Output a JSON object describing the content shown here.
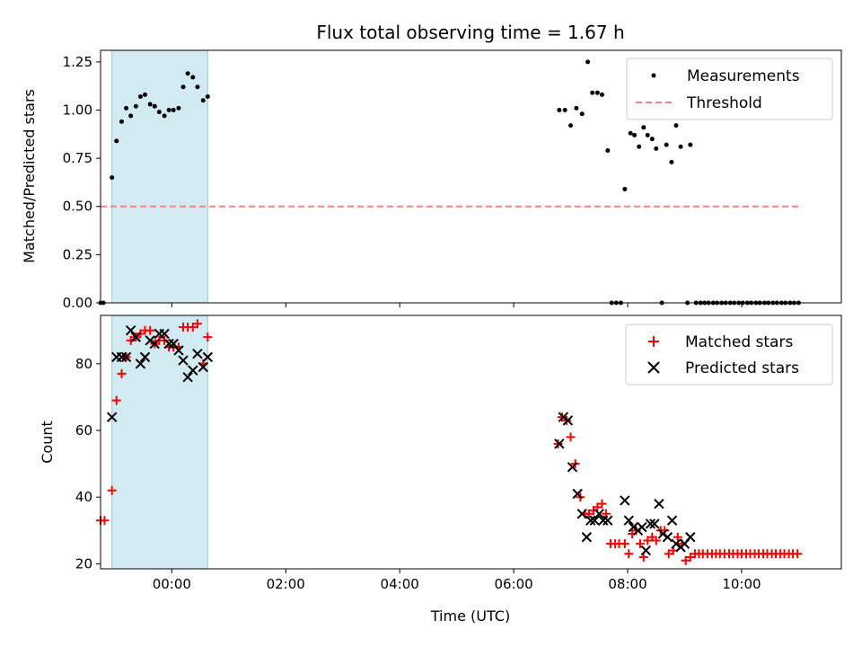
{
  "chart_data": [
    {
      "type": "scatter",
      "title": "Flux total observing time = 1.67 h",
      "ylabel": "Matched/Predicted stars",
      "xlabel": "",
      "xlim": [
        -1.25,
        11.75
      ],
      "ylim": [
        0.0,
        1.31
      ],
      "x_unit": "hours UTC",
      "xticks": [
        0,
        2,
        4,
        6,
        8,
        10
      ],
      "xtick_labels": [
        "",
        "",
        "",
        "",
        "",
        ""
      ],
      "yticks": [
        0.0,
        0.25,
        0.5,
        0.75,
        1.0,
        1.25
      ],
      "ytick_labels": [
        "0.00",
        "0.25",
        "0.50",
        "0.75",
        "1.00",
        "1.25"
      ],
      "shaded_span": {
        "x0": -1.05,
        "x1": 0.63,
        "color": "#add8e6"
      },
      "legend_position": "upper right",
      "series": [
        {
          "name": "Measurements",
          "marker": "dot",
          "color": "#000000",
          "points": [
            [
              -1.25,
              0.0
            ],
            [
              -1.2,
              0.0
            ],
            [
              -1.05,
              0.65
            ],
            [
              -0.97,
              0.84
            ],
            [
              -0.88,
              0.94
            ],
            [
              -0.8,
              1.01
            ],
            [
              -0.72,
              0.97
            ],
            [
              -0.63,
              1.02
            ],
            [
              -0.55,
              1.07
            ],
            [
              -0.47,
              1.08
            ],
            [
              -0.38,
              1.03
            ],
            [
              -0.3,
              1.02
            ],
            [
              -0.22,
              0.99
            ],
            [
              -0.13,
              0.97
            ],
            [
              -0.05,
              1.0
            ],
            [
              0.03,
              1.0
            ],
            [
              0.12,
              1.01
            ],
            [
              0.2,
              1.12
            ],
            [
              0.28,
              1.19
            ],
            [
              0.37,
              1.17
            ],
            [
              0.45,
              1.12
            ],
            [
              0.55,
              1.05
            ],
            [
              0.63,
              1.07
            ],
            [
              6.8,
              1.0
            ],
            [
              6.9,
              1.0
            ],
            [
              7.0,
              0.92
            ],
            [
              7.1,
              1.01
            ],
            [
              7.2,
              0.98
            ],
            [
              7.3,
              1.25
            ],
            [
              7.38,
              1.09
            ],
            [
              7.47,
              1.09
            ],
            [
              7.55,
              1.08
            ],
            [
              7.65,
              0.79
            ],
            [
              7.72,
              0.0
            ],
            [
              7.8,
              0.0
            ],
            [
              7.88,
              0.0
            ],
            [
              7.95,
              0.59
            ],
            [
              8.05,
              0.88
            ],
            [
              8.12,
              0.87
            ],
            [
              8.2,
              0.81
            ],
            [
              8.28,
              0.91
            ],
            [
              8.35,
              0.87
            ],
            [
              8.43,
              0.85
            ],
            [
              8.5,
              0.8
            ],
            [
              8.6,
              0.0
            ],
            [
              8.68,
              0.82
            ],
            [
              8.77,
              0.73
            ],
            [
              8.85,
              0.92
            ],
            [
              8.93,
              0.81
            ],
            [
              9.05,
              0.0
            ],
            [
              9.1,
              0.82
            ],
            [
              9.2,
              0.0
            ],
            [
              9.28,
              0.0
            ],
            [
              9.35,
              0.0
            ],
            [
              9.42,
              0.0
            ],
            [
              9.5,
              0.0
            ],
            [
              9.57,
              0.0
            ],
            [
              9.65,
              0.0
            ],
            [
              9.72,
              0.0
            ],
            [
              9.8,
              0.0
            ],
            [
              9.87,
              0.0
            ],
            [
              9.95,
              0.0
            ],
            [
              10.02,
              0.0
            ],
            [
              10.1,
              0.0
            ],
            [
              10.17,
              0.0
            ],
            [
              10.25,
              0.0
            ],
            [
              10.32,
              0.0
            ],
            [
              10.4,
              0.0
            ],
            [
              10.47,
              0.0
            ],
            [
              10.55,
              0.0
            ],
            [
              10.62,
              0.0
            ],
            [
              10.7,
              0.0
            ],
            [
              10.77,
              0.0
            ],
            [
              10.85,
              0.0
            ],
            [
              10.92,
              0.0
            ],
            [
              11.0,
              0.0
            ]
          ]
        },
        {
          "name": "Threshold",
          "marker": "dashed-line",
          "color": "#ff8080",
          "points": [
            [
              -1.25,
              0.5
            ],
            [
              11.0,
              0.5
            ]
          ]
        }
      ]
    },
    {
      "type": "scatter",
      "title": "",
      "xlabel": "Time (UTC)",
      "ylabel": "Count",
      "xlim": [
        -1.25,
        11.75
      ],
      "ylim": [
        18.5,
        94.5
      ],
      "x_unit": "hours UTC",
      "xticks": [
        0,
        2,
        4,
        6,
        8,
        10
      ],
      "xtick_labels": [
        "00:00",
        "02:00",
        "04:00",
        "06:00",
        "08:00",
        "10:00"
      ],
      "yticks": [
        20,
        40,
        60,
        80
      ],
      "ytick_labels": [
        "20",
        "40",
        "60",
        "80"
      ],
      "shaded_span": {
        "x0": -1.05,
        "x1": 0.63,
        "color": "#add8e6"
      },
      "legend_position": "upper right",
      "series": [
        {
          "name": "Matched stars",
          "marker": "plus",
          "color": "#ff0000",
          "points": [
            [
              -1.25,
              33
            ],
            [
              -1.18,
              33
            ],
            [
              -1.05,
              42
            ],
            [
              -0.97,
              69
            ],
            [
              -0.88,
              77
            ],
            [
              -0.8,
              82
            ],
            [
              -0.72,
              87
            ],
            [
              -0.63,
              88
            ],
            [
              -0.55,
              89
            ],
            [
              -0.47,
              90
            ],
            [
              -0.38,
              90
            ],
            [
              -0.3,
              86
            ],
            [
              -0.22,
              87
            ],
            [
              -0.13,
              87
            ],
            [
              -0.05,
              85
            ],
            [
              0.03,
              85
            ],
            [
              0.12,
              85
            ],
            [
              0.2,
              91
            ],
            [
              0.28,
              91
            ],
            [
              0.37,
              91
            ],
            [
              0.45,
              92
            ],
            [
              0.55,
              80
            ],
            [
              0.63,
              88
            ],
            [
              6.78,
              56
            ],
            [
              6.85,
              64
            ],
            [
              6.93,
              63
            ],
            [
              7.0,
              58
            ],
            [
              7.08,
              50
            ],
            [
              7.17,
              40
            ],
            [
              7.25,
              35
            ],
            [
              7.32,
              35
            ],
            [
              7.4,
              36
            ],
            [
              7.47,
              37
            ],
            [
              7.55,
              38
            ],
            [
              7.62,
              35
            ],
            [
              7.7,
              26
            ],
            [
              7.78,
              26
            ],
            [
              7.85,
              26
            ],
            [
              7.95,
              26
            ],
            [
              8.02,
              23
            ],
            [
              8.08,
              29
            ],
            [
              8.15,
              30
            ],
            [
              8.22,
              26
            ],
            [
              8.28,
              22
            ],
            [
              8.35,
              27
            ],
            [
              8.43,
              28
            ],
            [
              8.5,
              27
            ],
            [
              8.58,
              30
            ],
            [
              8.65,
              30
            ],
            [
              8.72,
              23
            ],
            [
              8.8,
              24
            ],
            [
              8.88,
              28
            ],
            [
              8.95,
              26
            ],
            [
              9.02,
              21
            ],
            [
              9.1,
              22
            ],
            [
              9.18,
              23
            ],
            [
              9.25,
              23
            ],
            [
              9.32,
              23
            ],
            [
              9.4,
              23
            ],
            [
              9.48,
              23
            ],
            [
              9.55,
              23
            ],
            [
              9.62,
              23
            ],
            [
              9.7,
              23
            ],
            [
              9.78,
              23
            ],
            [
              9.85,
              23
            ],
            [
              9.93,
              23
            ],
            [
              10.0,
              23
            ],
            [
              10.08,
              23
            ],
            [
              10.15,
              23
            ],
            [
              10.23,
              23
            ],
            [
              10.3,
              23
            ],
            [
              10.38,
              23
            ],
            [
              10.45,
              23
            ],
            [
              10.53,
              23
            ],
            [
              10.6,
              23
            ],
            [
              10.68,
              23
            ],
            [
              10.75,
              23
            ],
            [
              10.83,
              23
            ],
            [
              10.9,
              23
            ],
            [
              10.98,
              23
            ]
          ]
        },
        {
          "name": "Predicted stars",
          "marker": "x",
          "color": "#000000",
          "points": [
            [
              -1.05,
              64
            ],
            [
              -0.97,
              82
            ],
            [
              -0.88,
              82
            ],
            [
              -0.8,
              82
            ],
            [
              -0.72,
              90
            ],
            [
              -0.63,
              88
            ],
            [
              -0.55,
              80
            ],
            [
              -0.47,
              82
            ],
            [
              -0.38,
              87
            ],
            [
              -0.3,
              86
            ],
            [
              -0.22,
              89
            ],
            [
              -0.13,
              89
            ],
            [
              -0.05,
              86
            ],
            [
              0.03,
              86
            ],
            [
              0.12,
              84
            ],
            [
              0.2,
              81
            ],
            [
              0.28,
              76
            ],
            [
              0.37,
              78
            ],
            [
              0.45,
              83
            ],
            [
              0.55,
              79
            ],
            [
              0.63,
              82
            ],
            [
              6.8,
              56
            ],
            [
              6.87,
              64
            ],
            [
              6.95,
              63
            ],
            [
              7.03,
              49
            ],
            [
              7.12,
              41
            ],
            [
              7.2,
              35
            ],
            [
              7.28,
              28
            ],
            [
              7.35,
              33
            ],
            [
              7.42,
              33
            ],
            [
              7.5,
              35
            ],
            [
              7.57,
              33
            ],
            [
              7.65,
              33
            ],
            [
              7.95,
              39
            ],
            [
              8.02,
              33
            ],
            [
              8.1,
              31
            ],
            [
              8.18,
              30
            ],
            [
              8.25,
              31
            ],
            [
              8.32,
              24
            ],
            [
              8.4,
              32
            ],
            [
              8.47,
              32
            ],
            [
              8.55,
              38
            ],
            [
              8.62,
              29
            ],
            [
              8.7,
              28
            ],
            [
              8.78,
              33
            ],
            [
              8.85,
              26
            ],
            [
              8.93,
              25
            ],
            [
              9.0,
              26
            ],
            [
              9.1,
              28
            ]
          ]
        }
      ]
    }
  ]
}
